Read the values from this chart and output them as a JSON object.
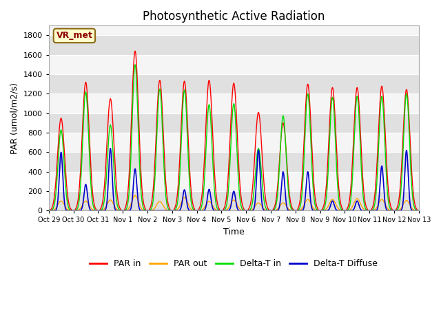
{
  "title": "Photosynthetic Active Radiation",
  "ylabel": "PAR (umol/m2/s)",
  "xlabel": "Time",
  "annotation": "VR_met",
  "ylim": [
    0,
    1900
  ],
  "yticks": [
    0,
    200,
    400,
    600,
    800,
    1000,
    1200,
    1400,
    1600,
    1800
  ],
  "colors": {
    "PAR in": "#ff0000",
    "PAR out": "#ffa500",
    "Delta-T in": "#00dd00",
    "Delta-T Diffuse": "#0000cc"
  },
  "legend_labels": [
    "PAR in",
    "PAR out",
    "Delta-T in",
    "Delta-T Diffuse"
  ],
  "bg_color": "#ebebeb",
  "bg_band_light": "#f5f5f5",
  "bg_band_dark": "#e0e0e0",
  "xtick_labels": [
    "Oct 29",
    "Oct 30",
    "Oct 31",
    "Nov 1",
    "Nov 2",
    "Nov 3",
    "Nov 4",
    "Nov 5",
    "Nov 6",
    "Nov 7",
    "Nov 8",
    "Nov 9",
    "Nov 10",
    "Nov 11",
    "Nov 12",
    "Nov 13"
  ],
  "grid_color": "#ffffff",
  "title_fontsize": 12,
  "axis_fontsize": 9,
  "tick_fontsize": 8,
  "par_in_peaks": [
    950,
    1320,
    1150,
    1640,
    1340,
    1330,
    1340,
    1310,
    1010,
    900,
    1300,
    1265,
    1265,
    1280,
    1245
  ],
  "par_out_peaks": [
    100,
    100,
    110,
    155,
    95,
    135,
    95,
    110,
    80,
    80,
    115,
    115,
    125,
    115,
    105
  ],
  "delta_t_peaks": [
    830,
    1220,
    880,
    1500,
    1250,
    1240,
    1090,
    1100,
    640,
    975,
    1200,
    1165,
    1175,
    1175,
    1200
  ],
  "delta_t_diff_peaks": [
    600,
    270,
    640,
    430,
    0,
    215,
    220,
    200,
    625,
    400,
    400,
    100,
    100,
    460,
    620
  ]
}
